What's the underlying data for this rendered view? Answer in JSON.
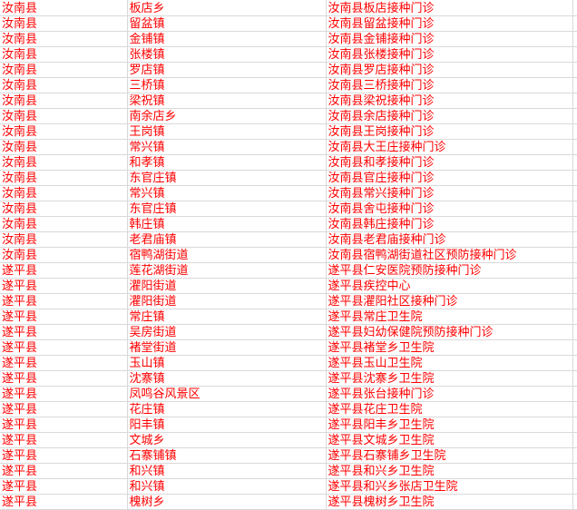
{
  "app": {
    "type": "spreadsheet-grid-fragment"
  },
  "colors": {
    "text": "#ff0000",
    "gridline": "#d9d9d9",
    "background": "#ffffff"
  },
  "table": {
    "rows": [
      {
        "county": "汝南县",
        "town": "板店乡",
        "clinic": "汝南县板店接种门诊"
      },
      {
        "county": "汝南县",
        "town": "留盆镇",
        "clinic": "汝南县留盆接种门诊"
      },
      {
        "county": "汝南县",
        "town": "金铺镇",
        "clinic": "汝南县金铺接种门诊"
      },
      {
        "county": "汝南县",
        "town": "张楼镇",
        "clinic": "汝南县张楼接种门诊"
      },
      {
        "county": "汝南县",
        "town": "罗店镇",
        "clinic": "汝南县罗店接种门诊"
      },
      {
        "county": "汝南县",
        "town": "三桥镇",
        "clinic": "汝南县三桥接种门诊"
      },
      {
        "county": "汝南县",
        "town": "梁祝镇",
        "clinic": "汝南县梁祝接种门诊"
      },
      {
        "county": "汝南县",
        "town": "南余店乡",
        "clinic": "汝南县余店接种门诊"
      },
      {
        "county": "汝南县",
        "town": "王岗镇",
        "clinic": "汝南县王岗接种门诊"
      },
      {
        "county": "汝南县",
        "town": "常兴镇",
        "clinic": "汝南县大王庄接种门诊"
      },
      {
        "county": "汝南县",
        "town": "和孝镇",
        "clinic": "汝南县和孝接种门诊"
      },
      {
        "county": "汝南县",
        "town": "东官庄镇",
        "clinic": "汝南县官庄接种门诊"
      },
      {
        "county": "汝南县",
        "town": "常兴镇",
        "clinic": "汝南县常兴接种门诊"
      },
      {
        "county": "汝南县",
        "town": "东官庄镇",
        "clinic": "汝南县舍屯接种门诊"
      },
      {
        "county": "汝南县",
        "town": "韩庄镇",
        "clinic": "汝南县韩庄接种门诊"
      },
      {
        "county": "汝南县",
        "town": "老君庙镇",
        "clinic": "汝南县老君庙接种门诊"
      },
      {
        "county": "汝南县",
        "town": "宿鸭湖街道",
        "clinic": "汝南县宿鸭湖街道社区预防接种门诊"
      },
      {
        "county": "遂平县",
        "town": "莲花湖街道",
        "clinic": "遂平县仁安医院预防接种门诊"
      },
      {
        "county": "遂平县",
        "town": "灈阳街道",
        "clinic": "遂平县疾控中心"
      },
      {
        "county": "遂平县",
        "town": "灈阳街道",
        "clinic": "遂平县灈阳社区接种门诊"
      },
      {
        "county": "遂平县",
        "town": "常庄镇",
        "clinic": "遂平县常庄卫生院"
      },
      {
        "county": "遂平县",
        "town": "吴房街道",
        "clinic": "遂平县妇幼保健院预防接种门诊"
      },
      {
        "county": "遂平县",
        "town": "褚堂街道",
        "clinic": "遂平县褚堂乡卫生院"
      },
      {
        "county": "遂平县",
        "town": "玉山镇",
        "clinic": "遂平县玉山卫生院"
      },
      {
        "county": "遂平县",
        "town": "沈寨镇",
        "clinic": "遂平县沈寨乡卫生院"
      },
      {
        "county": "遂平县",
        "town": "凤鸣谷风景区",
        "clinic": "遂平县张台接种门诊"
      },
      {
        "county": "遂平县",
        "town": "花庄镇",
        "clinic": "遂平县花庄卫生院"
      },
      {
        "county": "遂平县",
        "town": "阳丰镇",
        "clinic": "遂平县阳丰乡卫生院"
      },
      {
        "county": "遂平县",
        "town": "文城乡",
        "clinic": "遂平县文城乡卫生院"
      },
      {
        "county": "遂平县",
        "town": "石寨铺镇",
        "clinic": "遂平县石寨铺乡卫生院"
      },
      {
        "county": "遂平县",
        "town": "和兴镇",
        "clinic": "遂平县和兴乡卫生院"
      },
      {
        "county": "遂平县",
        "town": "和兴镇",
        "clinic": "遂平县和兴乡张店卫生院"
      },
      {
        "county": "遂平县",
        "town": "槐树乡",
        "clinic": "遂平县槐树乡卫生院"
      }
    ]
  }
}
